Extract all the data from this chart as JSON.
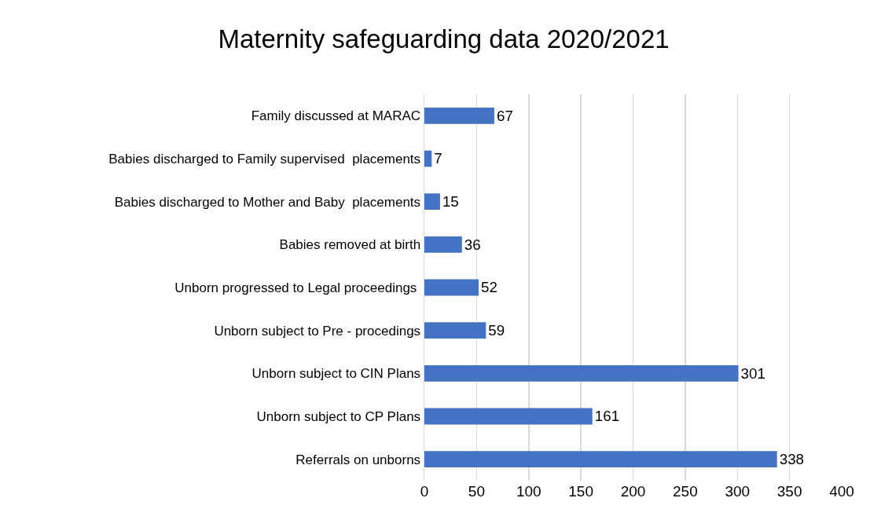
{
  "chart_data": {
    "type": "bar",
    "orientation": "horizontal",
    "title": "Maternity safeguarding data 2020/2021",
    "categories": [
      "Family discussed at MARAC",
      "Babies discharged to Family supervised  placements",
      "Babies discharged to Mother and Baby  placements",
      "Babies removed at birth",
      "Unborn progressed to Legal proceedings ",
      "Unborn subject to Pre - procedings",
      "Unborn subject to CIN Plans",
      "Unborn subject to CP Plans",
      "Referrals on unborns"
    ],
    "values": [
      67,
      7,
      15,
      36,
      52,
      59,
      301,
      161,
      338
    ],
    "color": "#4472c4",
    "xlim": [
      0,
      400
    ],
    "xticks": [
      0,
      50,
      100,
      150,
      200,
      250,
      300,
      350,
      400
    ],
    "grid": "x",
    "data_labels": true
  }
}
